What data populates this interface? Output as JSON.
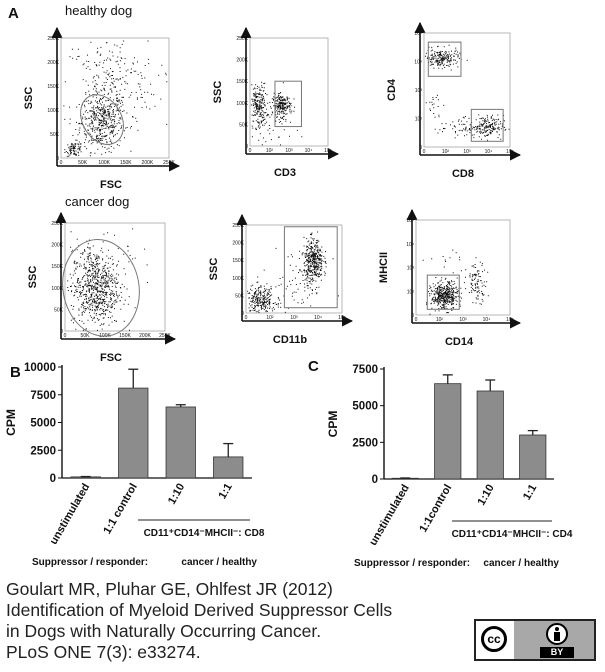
{
  "panel_letters": {
    "a": "A",
    "b": "B",
    "c": "C"
  },
  "flow": {
    "healthy_title": "healthy dog",
    "cancer_title": "cancer dog",
    "plots": [
      {
        "id": "h1",
        "ylabel": "SSC",
        "xlabel": "FSC",
        "yticks": [
          "250K",
          "200K",
          "150K",
          "100K",
          "50K",
          "0"
        ],
        "xticks": [
          "0",
          "50K",
          "100K",
          "150K",
          "200K",
          "250K"
        ]
      },
      {
        "id": "h2",
        "ylabel": "SSC",
        "xlabel": "CD3",
        "yticks": [
          "250K",
          "200K",
          "150K",
          "100K",
          "50K",
          "0"
        ],
        "xticks": [
          "0",
          "10²",
          "10³",
          "10⁴",
          "10⁵"
        ]
      },
      {
        "id": "h3",
        "ylabel": "CD4",
        "xlabel": "CD8",
        "yticks": [
          "10⁵",
          "10⁴",
          "10³",
          "10²",
          "0"
        ],
        "xticks": [
          "0",
          "10²",
          "10³",
          "10⁴",
          "10⁵"
        ]
      },
      {
        "id": "c1",
        "ylabel": "SSC",
        "xlabel": "FSC",
        "yticks": [
          "250K",
          "200K",
          "150K",
          "100K",
          "50K",
          "0"
        ],
        "xticks": [
          "0",
          "50K",
          "100K",
          "150K",
          "200K",
          "250K"
        ]
      },
      {
        "id": "c2",
        "ylabel": "SSC",
        "xlabel": "CD11b",
        "yticks": [
          "250K",
          "200K",
          "150K",
          "100K",
          "50K",
          "0"
        ],
        "xticks": [
          "0",
          "10²",
          "10³",
          "10⁴",
          "10⁵"
        ]
      },
      {
        "id": "c3",
        "ylabel": "MHCII",
        "xlabel": "CD14",
        "yticks": [
          "10⁵",
          "10⁴",
          "10³",
          "10²",
          "0"
        ],
        "xticks": [
          "0",
          "10²",
          "10³",
          "10⁴",
          "10⁵"
        ]
      }
    ]
  },
  "chart_data": [
    {
      "type": "bar",
      "panel": "B",
      "ylabel": "CPM",
      "ylim": [
        0,
        10000
      ],
      "yticks": [
        "10000",
        "7500",
        "5000",
        "2500",
        "0"
      ],
      "ytick_values": [
        10000,
        7500,
        5000,
        2500,
        0
      ],
      "categories": [
        "unstimulated",
        "1:1 control",
        "1:10",
        "1:1"
      ],
      "values": [
        100,
        8100,
        6400,
        1900
      ],
      "errors": [
        30,
        1700,
        200,
        1200
      ],
      "group_label": "CD11⁺CD14⁻MHCII⁻: CD8",
      "suppressor_label": "Suppressor / responder:",
      "suppressor_value": "cancer / healthy"
    },
    {
      "type": "bar",
      "panel": "C",
      "ylabel": "CPM",
      "ylim": [
        0,
        7500
      ],
      "yticks": [
        "7500",
        "5000",
        "2500",
        "0"
      ],
      "ytick_values": [
        7500,
        5000,
        2500,
        0
      ],
      "categories": [
        "unstimulated",
        "1:1control",
        "1:10",
        "1:1"
      ],
      "values": [
        50,
        6500,
        6000,
        3000
      ],
      "errors": [
        20,
        600,
        750,
        300
      ],
      "group_label": "CD11⁺CD14⁻MHCII⁻: CD4",
      "suppressor_label": "Suppressor / responder:",
      "suppressor_value": "cancer / healthy"
    }
  ],
  "caption": {
    "line1": "Goulart MR, Pluhar GE, Ohlfest JR (2012)",
    "line2": "Identification of Myeloid Derived Suppressor Cells",
    "line3": "in Dogs with Naturally Occurring Cancer.",
    "line4": "PLoS ONE 7(3): e33274."
  },
  "license": {
    "cc": "cc",
    "by": "BY"
  }
}
